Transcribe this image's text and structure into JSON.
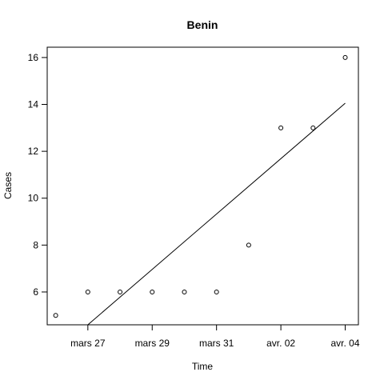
{
  "chart_data": {
    "type": "scatter",
    "title": "Benin",
    "xlabel": "Time",
    "ylabel": "Cases",
    "x_tick_labels": [
      "mars 27",
      "mars 29",
      "mars 31",
      "avr. 02",
      "avr. 04"
    ],
    "x_tick_dates": [
      "2020-03-27",
      "2020-03-29",
      "2020-03-31",
      "2020-04-02",
      "2020-04-04"
    ],
    "y_ticks": [
      6,
      8,
      10,
      12,
      14,
      16
    ],
    "xlim": [
      "2020-03-25 17:40",
      "2020-04-04 09:50"
    ],
    "ylim": [
      4.6,
      16.44
    ],
    "grid": false,
    "points": [
      {
        "x": "2020-03-26",
        "y": 5
      },
      {
        "x": "2020-03-27",
        "y": 6
      },
      {
        "x": "2020-03-28",
        "y": 6
      },
      {
        "x": "2020-03-29",
        "y": 6
      },
      {
        "x": "2020-03-30",
        "y": 6
      },
      {
        "x": "2020-03-31",
        "y": 6
      },
      {
        "x": "2020-04-01",
        "y": 8
      },
      {
        "x": "2020-04-02",
        "y": 13
      },
      {
        "x": "2020-04-03",
        "y": 13
      },
      {
        "x": "2020-04-04",
        "y": 16
      }
    ],
    "trend_line": [
      {
        "x": "2020-03-27",
        "y": 4.6
      },
      {
        "x": "2020-04-04",
        "y": 14.05
      }
    ]
  }
}
